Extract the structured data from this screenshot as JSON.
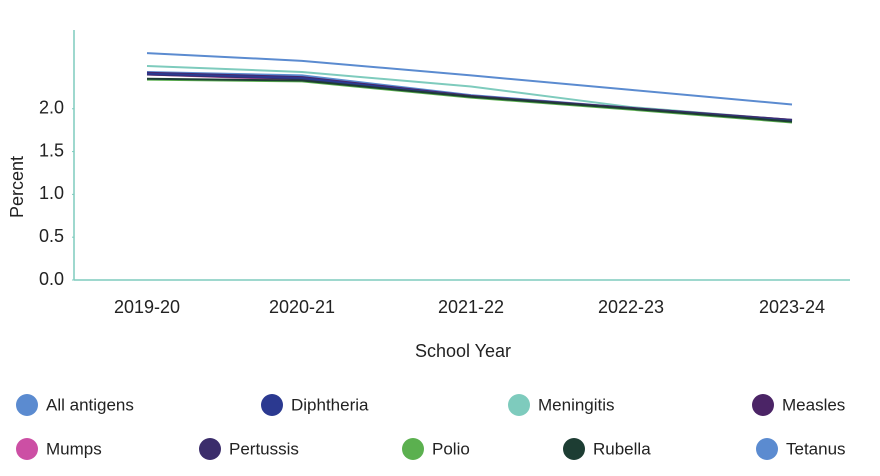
{
  "chart_data": {
    "type": "line",
    "x_label": "School Year",
    "y_label": "Percent",
    "categories": [
      "2019-20",
      "2020-21",
      "2021-22",
      "2022-23",
      "2023-24"
    ],
    "ylim": [
      0,
      2.92
    ],
    "yticks": [
      {
        "value": 0,
        "label": "0.0"
      },
      {
        "value": 0.5,
        "label": "0.5"
      },
      {
        "value": 1,
        "label": "1.0"
      },
      {
        "value": 1.5,
        "label": "1.5"
      },
      {
        "value": 2,
        "label": "2.0"
      }
    ],
    "series": [
      {
        "name": "All antigens",
        "color": "#5b8bd0",
        "values": [
          2.43,
          2.39,
          2.16,
          2.01,
          1.87
        ]
      },
      {
        "name": "Diphtheria",
        "color": "#2b3990",
        "values": [
          2.41,
          2.36,
          2.14,
          2.0,
          1.86
        ]
      },
      {
        "name": "Meningitis",
        "color": "#7ecbbd",
        "values": [
          2.5,
          2.43,
          2.26,
          2.02,
          1.87
        ]
      },
      {
        "name": "Measles",
        "color": "#4b2466",
        "values": [
          2.42,
          2.37,
          2.15,
          2.01,
          1.87
        ]
      },
      {
        "name": "Mumps",
        "color": "#cc4fa4",
        "values": [
          2.4,
          2.34,
          2.14,
          2.0,
          1.86
        ]
      },
      {
        "name": "Pertussis",
        "color": "#3b2d6b",
        "values": [
          2.4,
          2.35,
          2.14,
          2.0,
          1.86
        ]
      },
      {
        "name": "Polio",
        "color": "#5bb04f",
        "values": [
          2.34,
          2.32,
          2.13,
          1.99,
          1.84
        ]
      },
      {
        "name": "Rubella",
        "color": "#1d3d33",
        "values": [
          2.35,
          2.33,
          2.14,
          2.0,
          1.85
        ]
      },
      {
        "name": "Tetanus",
        "color": "#5b8bd0",
        "values": [
          2.65,
          2.56,
          2.39,
          2.22,
          2.05
        ]
      }
    ]
  }
}
